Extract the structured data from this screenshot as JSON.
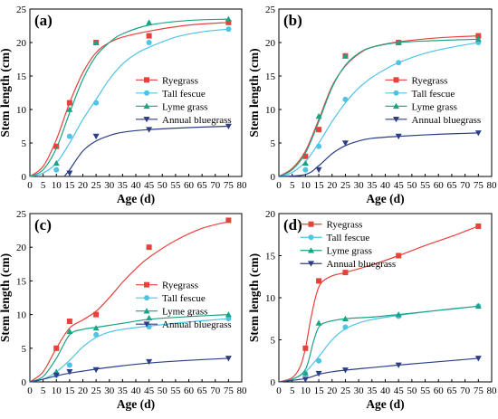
{
  "colors": {
    "Ryegrass": "#e8413a",
    "Tall fescue": "#4fc3e6",
    "Lyme grass": "#1aa384",
    "Annual bluegrass": "#2c3f86"
  },
  "chart_data": [
    {
      "type": "line",
      "panel_label": "(a)",
      "xlabel": "Age (d)",
      "ylabel": "Stem length (cm)",
      "xlim": [
        0,
        80
      ],
      "ylim": [
        0,
        25
      ],
      "xticks": [
        0,
        5,
        10,
        15,
        20,
        25,
        30,
        35,
        40,
        45,
        50,
        55,
        60,
        65,
        70,
        75,
        80
      ],
      "yticks": [
        0,
        5,
        10,
        15,
        20,
        25
      ],
      "legend_position": "center-right",
      "series": [
        {
          "name": "Ryegrass",
          "marker": "square",
          "x": [
            10,
            15,
            25,
            45,
            75
          ],
          "values": [
            4.5,
            11,
            20,
            21,
            23
          ],
          "curve": [
            [
              0,
              0
            ],
            [
              5,
              1.5
            ],
            [
              10,
              5.5
            ],
            [
              15,
              11
            ],
            [
              20,
              15.5
            ],
            [
              25,
              18.5
            ],
            [
              30,
              20
            ],
            [
              35,
              20.8
            ],
            [
              45,
              21.7
            ],
            [
              60,
              22.6
            ],
            [
              75,
              23
            ]
          ]
        },
        {
          "name": "Tall fescue",
          "marker": "circle",
          "x": [
            10,
            15,
            25,
            45,
            75
          ],
          "values": [
            1,
            6,
            11,
            20,
            22
          ],
          "curve": [
            [
              0,
              0
            ],
            [
              5,
              0.5
            ],
            [
              10,
              2
            ],
            [
              15,
              5
            ],
            [
              20,
              8.5
            ],
            [
              25,
              11.5
            ],
            [
              30,
              14.5
            ],
            [
              35,
              16.8
            ],
            [
              40,
              18.3
            ],
            [
              45,
              19.3
            ],
            [
              55,
              20.8
            ],
            [
              65,
              21.6
            ],
            [
              75,
              22
            ]
          ]
        },
        {
          "name": "Lyme grass",
          "marker": "triangle-up",
          "x": [
            10,
            15,
            25,
            45,
            75
          ],
          "values": [
            2,
            10,
            20,
            23,
            23.5
          ],
          "curve": [
            [
              0,
              0
            ],
            [
              5,
              1
            ],
            [
              10,
              4.2
            ],
            [
              15,
              9.5
            ],
            [
              20,
              14.5
            ],
            [
              25,
              18
            ],
            [
              30,
              20
            ],
            [
              35,
              21.3
            ],
            [
              45,
              22.6
            ],
            [
              60,
              23.3
            ],
            [
              75,
              23.5
            ]
          ]
        },
        {
          "name": "Annual bluegrass",
          "marker": "triangle-down",
          "x": [
            15,
            25,
            45,
            75
          ],
          "values": [
            0.5,
            6,
            7,
            7.5
          ],
          "curve": [
            [
              13,
              0
            ],
            [
              15,
              1
            ],
            [
              20,
              3.8
            ],
            [
              25,
              5.3
            ],
            [
              30,
              6.1
            ],
            [
              35,
              6.6
            ],
            [
              45,
              7
            ],
            [
              60,
              7.3
            ],
            [
              75,
              7.5
            ]
          ]
        }
      ]
    },
    {
      "type": "line",
      "panel_label": "(b)",
      "xlabel": "Age (d)",
      "ylabel": "Stem length (cm)",
      "xlim": [
        0,
        80
      ],
      "ylim": [
        0,
        25
      ],
      "xticks": [
        0,
        5,
        10,
        15,
        20,
        25,
        30,
        35,
        40,
        45,
        50,
        55,
        60,
        65,
        70,
        75,
        80
      ],
      "yticks": [
        0,
        5,
        10,
        15,
        20,
        25
      ],
      "legend_position": "center-right",
      "series": [
        {
          "name": "Ryegrass",
          "marker": "square",
          "x": [
            10,
            15,
            25,
            45,
            75
          ],
          "values": [
            3,
            7,
            18,
            20,
            21
          ],
          "curve": [
            [
              0,
              0
            ],
            [
              5,
              1.2
            ],
            [
              10,
              3.8
            ],
            [
              15,
              8.5
            ],
            [
              20,
              13.5
            ],
            [
              25,
              16.5
            ],
            [
              30,
              18.3
            ],
            [
              35,
              19.3
            ],
            [
              45,
              20.1
            ],
            [
              60,
              20.7
            ],
            [
              75,
              21
            ]
          ]
        },
        {
          "name": "Tall fescue",
          "marker": "circle",
          "x": [
            10,
            15,
            25,
            45,
            75
          ],
          "values": [
            1,
            4.5,
            11.5,
            17,
            20
          ],
          "curve": [
            [
              0,
              0
            ],
            [
              5,
              0.6
            ],
            [
              10,
              2.2
            ],
            [
              15,
              5
            ],
            [
              20,
              8.2
            ],
            [
              25,
              11
            ],
            [
              30,
              13.2
            ],
            [
              35,
              14.8
            ],
            [
              40,
              16
            ],
            [
              45,
              17
            ],
            [
              55,
              18.4
            ],
            [
              65,
              19.3
            ],
            [
              75,
              20
            ]
          ]
        },
        {
          "name": "Lyme grass",
          "marker": "triangle-up",
          "x": [
            10,
            15,
            25,
            45,
            75
          ],
          "values": [
            2,
            9,
            18,
            20,
            20.5
          ],
          "curve": [
            [
              0,
              0
            ],
            [
              5,
              1
            ],
            [
              10,
              3.5
            ],
            [
              15,
              8.2
            ],
            [
              20,
              13.3
            ],
            [
              25,
              16.6
            ],
            [
              30,
              18.4
            ],
            [
              35,
              19.3
            ],
            [
              45,
              20
            ],
            [
              60,
              20.3
            ],
            [
              75,
              20.5
            ]
          ]
        },
        {
          "name": "Annual bluegrass",
          "marker": "triangle-down",
          "x": [
            15,
            25,
            45,
            75
          ],
          "values": [
            1,
            5,
            6,
            6.5
          ],
          "curve": [
            [
              0,
              0
            ],
            [
              10,
              0.3
            ],
            [
              15,
              1.6
            ],
            [
              20,
              3.4
            ],
            [
              25,
              4.6
            ],
            [
              30,
              5.3
            ],
            [
              35,
              5.7
            ],
            [
              45,
              6
            ],
            [
              60,
              6.3
            ],
            [
              75,
              6.5
            ]
          ]
        }
      ]
    },
    {
      "type": "line",
      "panel_label": "(c)",
      "xlabel": "Age (d)",
      "ylabel": "Stem length (cm)",
      "xlim": [
        0,
        80
      ],
      "ylim": [
        0,
        25
      ],
      "xticks": [
        0,
        5,
        10,
        15,
        20,
        25,
        30,
        35,
        40,
        45,
        50,
        55,
        60,
        65,
        70,
        75,
        80
      ],
      "yticks": [
        0,
        5,
        10,
        15,
        20,
        25
      ],
      "legend_position": "center-right",
      "series": [
        {
          "name": "Ryegrass",
          "marker": "square",
          "x": [
            10,
            15,
            25,
            45,
            75
          ],
          "values": [
            5,
            9,
            10,
            20,
            24
          ],
          "curve": [
            [
              0,
              0
            ],
            [
              5,
              1.5
            ],
            [
              10,
              5
            ],
            [
              15,
              8
            ],
            [
              20,
              9.2
            ],
            [
              25,
              10.5
            ],
            [
              30,
              12.5
            ],
            [
              35,
              14.8
            ],
            [
              40,
              16.8
            ],
            [
              45,
              18.5
            ],
            [
              55,
              21
            ],
            [
              65,
              22.8
            ],
            [
              75,
              23.8
            ]
          ]
        },
        {
          "name": "Tall fescue",
          "marker": "circle",
          "x": [
            10,
            15,
            25,
            45,
            75
          ],
          "values": [
            1,
            2.5,
            7,
            8.2,
            9.4
          ],
          "curve": [
            [
              0,
              0
            ],
            [
              5,
              0.4
            ],
            [
              10,
              1.5
            ],
            [
              15,
              3.2
            ],
            [
              20,
              5.2
            ],
            [
              25,
              6.6
            ],
            [
              30,
              7.4
            ],
            [
              35,
              7.8
            ],
            [
              45,
              8.3
            ],
            [
              60,
              8.9
            ],
            [
              75,
              9.4
            ]
          ]
        },
        {
          "name": "Lyme grass",
          "marker": "triangle-up",
          "x": [
            10,
            15,
            25,
            45,
            75
          ],
          "values": [
            1.5,
            7.5,
            8,
            9.5,
            10
          ],
          "curve": [
            [
              0,
              0
            ],
            [
              5,
              0.8
            ],
            [
              10,
              3.5
            ],
            [
              15,
              7
            ],
            [
              20,
              7.8
            ],
            [
              25,
              8.1
            ],
            [
              30,
              8.4
            ],
            [
              35,
              8.7
            ],
            [
              45,
              9.3
            ],
            [
              60,
              9.7
            ],
            [
              75,
              10
            ]
          ]
        },
        {
          "name": "Annual bluegrass",
          "marker": "triangle-down",
          "x": [
            10,
            15,
            25,
            45,
            75
          ],
          "values": [
            1,
            1.5,
            1.8,
            3,
            3.5
          ],
          "curve": [
            [
              0,
              0
            ],
            [
              5,
              0.4
            ],
            [
              10,
              0.9
            ],
            [
              15,
              1.3
            ],
            [
              20,
              1.6
            ],
            [
              25,
              1.9
            ],
            [
              35,
              2.4
            ],
            [
              45,
              2.8
            ],
            [
              60,
              3.2
            ],
            [
              75,
              3.5
            ]
          ]
        }
      ]
    },
    {
      "type": "line",
      "panel_label": "(d)",
      "xlabel": "Age (d)",
      "ylabel": "Stem length (cm)",
      "xlim": [
        0,
        80
      ],
      "ylim": [
        0,
        20
      ],
      "xticks": [
        0,
        5,
        10,
        15,
        20,
        25,
        30,
        35,
        40,
        45,
        50,
        55,
        60,
        65,
        70,
        75,
        80
      ],
      "yticks": [
        0,
        5,
        10,
        15,
        20
      ],
      "legend_position": "top-left",
      "series": [
        {
          "name": "Ryegrass",
          "marker": "square",
          "x": [
            10,
            15,
            25,
            45,
            75
          ],
          "values": [
            4,
            12,
            13,
            15,
            18.5
          ],
          "curve": [
            [
              0,
              0
            ],
            [
              5,
              0.5
            ],
            [
              8,
              1.8
            ],
            [
              10,
              4
            ],
            [
              12,
              7.5
            ],
            [
              14,
              10.3
            ],
            [
              16,
              11.8
            ],
            [
              20,
              12.6
            ],
            [
              25,
              13
            ],
            [
              35,
              13.9
            ],
            [
              45,
              15
            ],
            [
              55,
              16.2
            ],
            [
              65,
              17.3
            ],
            [
              75,
              18.5
            ]
          ]
        },
        {
          "name": "Tall fescue",
          "marker": "circle",
          "x": [
            10,
            15,
            25,
            45,
            75
          ],
          "values": [
            1,
            2.5,
            6.5,
            7.8,
            9
          ],
          "curve": [
            [
              0,
              0
            ],
            [
              5,
              0.3
            ],
            [
              10,
              1.2
            ],
            [
              15,
              3
            ],
            [
              20,
              5
            ],
            [
              25,
              6.3
            ],
            [
              30,
              7
            ],
            [
              35,
              7.4
            ],
            [
              45,
              7.9
            ],
            [
              60,
              8.5
            ],
            [
              75,
              9
            ]
          ]
        },
        {
          "name": "Lyme grass",
          "marker": "triangle-up",
          "x": [
            10,
            15,
            25,
            45,
            75
          ],
          "values": [
            1,
            7,
            7.5,
            8,
            9
          ],
          "curve": [
            [
              0,
              0
            ],
            [
              5,
              0.3
            ],
            [
              10,
              1.5
            ],
            [
              13,
              4.8
            ],
            [
              15,
              6.5
            ],
            [
              18,
              7.1
            ],
            [
              25,
              7.5
            ],
            [
              35,
              7.7
            ],
            [
              45,
              8
            ],
            [
              60,
              8.5
            ],
            [
              75,
              9
            ]
          ]
        },
        {
          "name": "Annual bluegrass",
          "marker": "triangle-down",
          "x": [
            10,
            15,
            25,
            45,
            75
          ],
          "values": [
            0.3,
            1,
            1.4,
            2,
            2.8
          ],
          "curve": [
            [
              0,
              0
            ],
            [
              10,
              0.4
            ],
            [
              15,
              0.9
            ],
            [
              20,
              1.2
            ],
            [
              25,
              1.4
            ],
            [
              35,
              1.7
            ],
            [
              45,
              2
            ],
            [
              60,
              2.4
            ],
            [
              75,
              2.8
            ]
          ]
        }
      ]
    }
  ]
}
